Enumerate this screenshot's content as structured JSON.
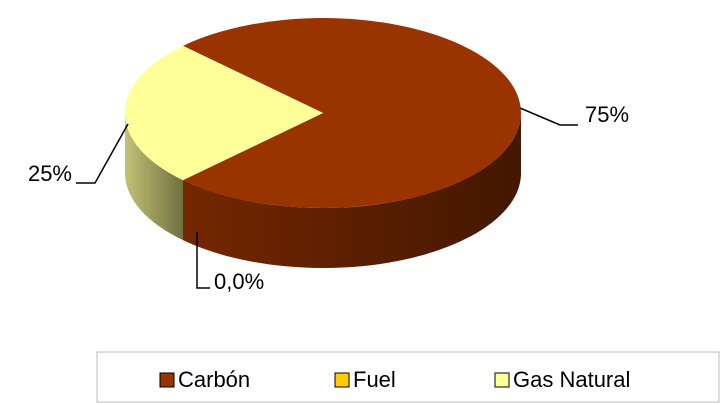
{
  "chart_data": {
    "type": "pie",
    "categories": [
      "Carbón",
      "Fuel",
      "Gas Natural"
    ],
    "values": [
      75,
      0,
      25
    ],
    "value_labels": [
      "75%",
      "0,0%",
      "25%"
    ],
    "colors": [
      "#993300",
      "#ffcc00",
      "#ffff99"
    ],
    "legend": "bottom"
  }
}
